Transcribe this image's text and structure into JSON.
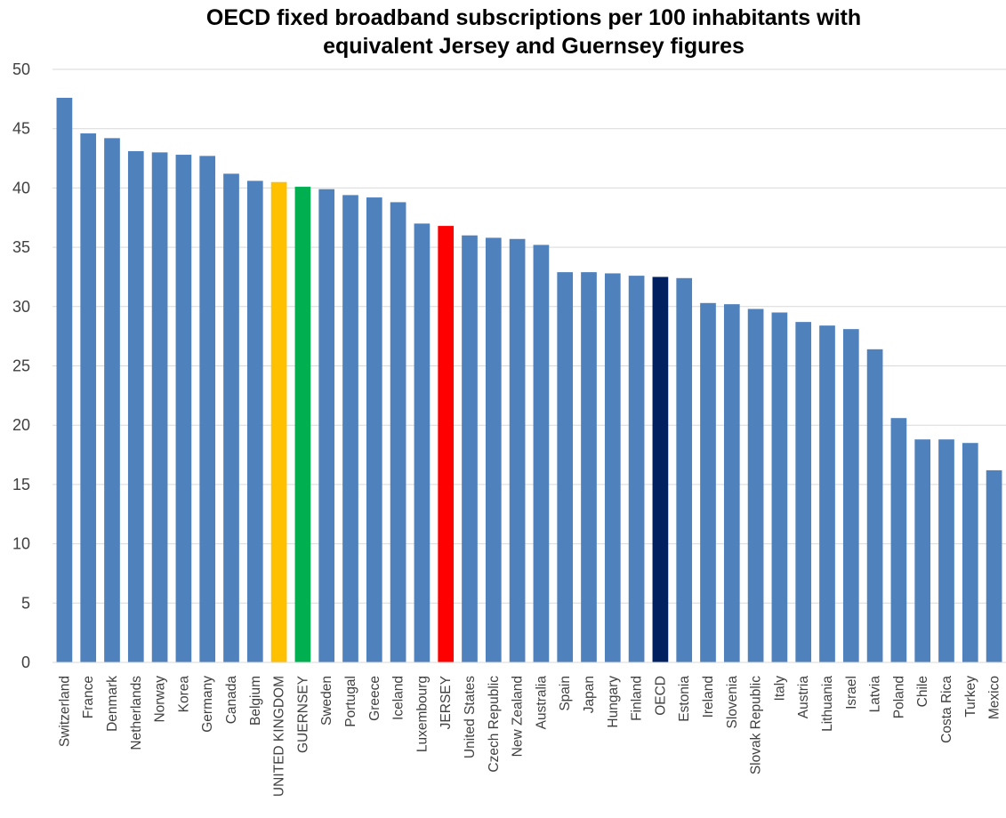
{
  "chart_data": {
    "type": "bar",
    "title_lines": [
      "OECD fixed broadband subscriptions per 100 inhabitants with",
      "equivalent Jersey and Guernsey figures"
    ],
    "xlabel": "",
    "ylabel": "",
    "ylim": [
      0,
      50
    ],
    "yticks": [
      0,
      5,
      10,
      15,
      20,
      25,
      30,
      35,
      40,
      45,
      50
    ],
    "grid": true,
    "legend": "none",
    "default_color": "#4f81bd",
    "categories": [
      "Switzerland",
      "France",
      "Denmark",
      "Netherlands",
      "Norway",
      "Korea",
      "Germany",
      "Canada",
      "Belgium",
      "UNITED KINGDOM",
      "GUERNSEY",
      "Sweden",
      "Portugal",
      "Greece",
      "Iceland",
      "Luxembourg",
      "JERSEY",
      "United States",
      "Czech Republic",
      "New Zealand",
      "Australia",
      "Spain",
      "Japan",
      "Hungary",
      "Finland",
      "OECD",
      "Estonia",
      "Ireland",
      "Slovenia",
      "Slovak Republic",
      "Italy",
      "Austria",
      "Lithuania",
      "Israel",
      "Latvia",
      "Poland",
      "Chile",
      "Costa Rica",
      "Turkey",
      "Mexico"
    ],
    "values": [
      47.6,
      44.6,
      44.2,
      43.1,
      43.0,
      42.8,
      42.7,
      41.2,
      40.6,
      40.5,
      40.1,
      39.9,
      39.4,
      39.2,
      38.8,
      37.0,
      36.8,
      36.0,
      35.8,
      35.7,
      35.2,
      32.9,
      32.9,
      32.8,
      32.6,
      32.5,
      32.4,
      30.3,
      30.2,
      29.8,
      29.5,
      28.7,
      28.4,
      28.1,
      26.4,
      20.6,
      18.8,
      18.8,
      18.5,
      16.2
    ],
    "highlight_colors": {
      "UNITED KINGDOM": "#ffc000",
      "GUERNSEY": "#00b050",
      "JERSEY": "#ff0000",
      "OECD": "#002060"
    }
  }
}
